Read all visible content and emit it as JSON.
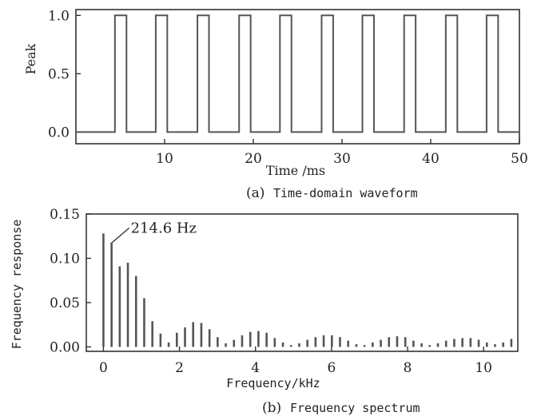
{
  "chart_data": [
    {
      "type": "line",
      "panel": "a",
      "caption_tag": "(a)",
      "caption_text": "Time-domain waveform",
      "xlabel": "Time /ms",
      "ylabel": "Peak",
      "xlim": [
        0,
        50
      ],
      "ylim": [
        -0.1,
        1.05
      ],
      "xticks": [
        10,
        20,
        30,
        40,
        50
      ],
      "yticks": [
        0.0,
        0.5,
        1.0
      ],
      "ytick_labels": [
        "0.0",
        "0.5",
        "1.0"
      ],
      "pulse_width_ms": 1.3,
      "pulse_starts_ms": [
        4.4,
        9.0,
        13.7,
        18.4,
        23.0,
        27.7,
        32.3,
        37.0,
        41.7,
        46.3
      ],
      "low_level": 0.0,
      "high_level": 1.0,
      "grid": false
    },
    {
      "type": "bar",
      "panel": "b",
      "caption_tag": "(b)",
      "caption_text": "Frequency spectrum",
      "xlabel": "Frequency/kHz",
      "ylabel": "Frequency response",
      "xlim": [
        -0.45,
        10.9
      ],
      "ylim": [
        -0.005,
        0.15
      ],
      "xticks": [
        0,
        2,
        4,
        6,
        8,
        10
      ],
      "yticks": [
        0.0,
        0.05,
        0.1,
        0.15
      ],
      "ytick_labels": [
        "0.00",
        "0.05",
        "0.10",
        "0.15"
      ],
      "annotation": {
        "text": "214.6 Hz",
        "x": 0.2146,
        "y": 0.118
      },
      "x": [
        0.0,
        0.2146,
        0.4292,
        0.6438,
        0.8584,
        1.073,
        1.2876,
        1.5022,
        1.7168,
        1.9314,
        2.146,
        2.3606,
        2.5752,
        2.7898,
        3.0044,
        3.219,
        3.4336,
        3.6482,
        3.8628,
        4.0774,
        4.292,
        4.5066,
        4.7212,
        4.9358,
        5.1504,
        5.365,
        5.5796,
        5.7942,
        6.0088,
        6.2234,
        6.438,
        6.6526,
        6.8672,
        7.0818,
        7.2964,
        7.511,
        7.7256,
        7.9402,
        8.1548,
        8.3694,
        8.584,
        8.7986,
        9.0132,
        9.2278,
        9.4424,
        9.657,
        9.8716,
        10.0862,
        10.3008,
        10.5154,
        10.73
      ],
      "values": [
        0.128,
        0.118,
        0.091,
        0.095,
        0.08,
        0.055,
        0.029,
        0.015,
        0.005,
        0.016,
        0.022,
        0.028,
        0.027,
        0.02,
        0.011,
        0.004,
        0.008,
        0.013,
        0.017,
        0.018,
        0.016,
        0.01,
        0.005,
        0.002,
        0.004,
        0.008,
        0.011,
        0.013,
        0.013,
        0.011,
        0.007,
        0.003,
        0.002,
        0.005,
        0.008,
        0.011,
        0.012,
        0.011,
        0.007,
        0.004,
        0.002,
        0.004,
        0.007,
        0.009,
        0.01,
        0.01,
        0.008,
        0.005,
        0.003,
        0.005,
        0.009
      ],
      "grid": false
    }
  ]
}
